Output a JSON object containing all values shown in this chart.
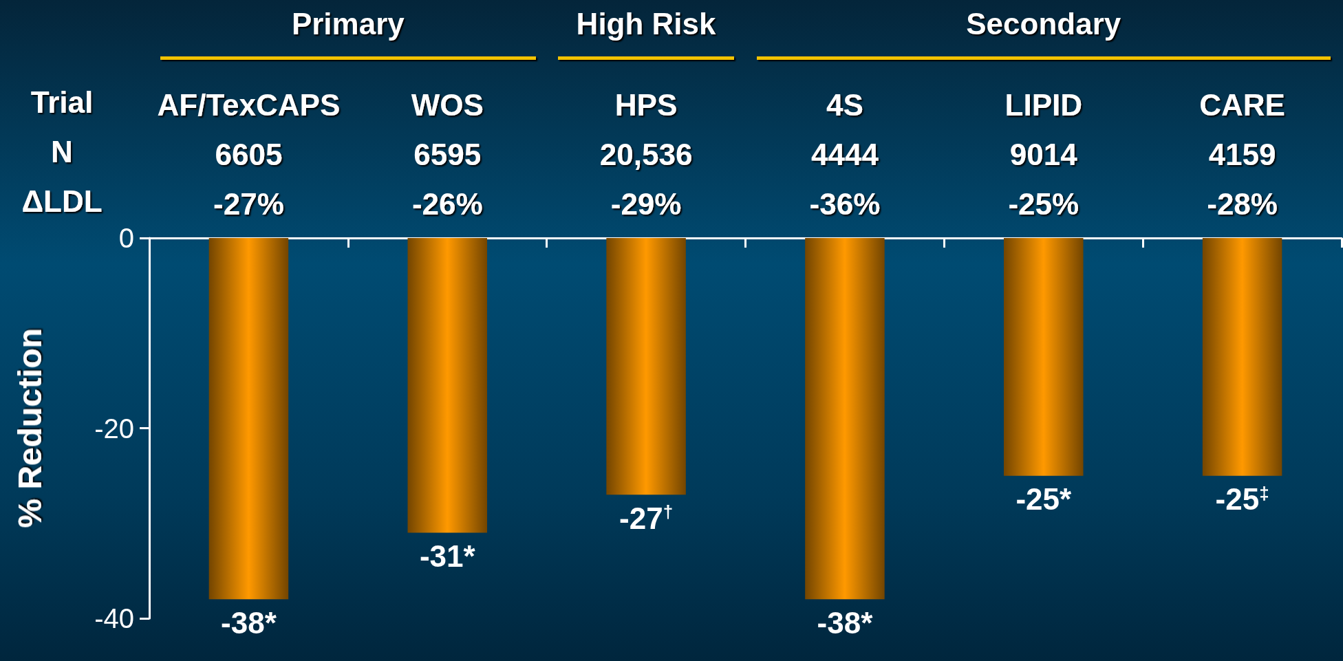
{
  "chart_data": {
    "type": "bar",
    "categories": [
      "AF/TexCAPS\n6605\n-27%",
      "WOS\n6595\n-26%",
      "HPS\n20,536\n-29%",
      "4S\n4444\n-36%",
      "LIPID\n9014\n-25%",
      "CARE\n4159\n-28%"
    ],
    "values": [
      -38,
      -31,
      -27,
      -38,
      -25,
      -25
    ],
    "value_labels": [
      "-38*",
      "-31*",
      "-27$^{†}$",
      "-38*",
      "-25*",
      "-25$^{‡}$"
    ],
    "color": "#ff9900",
    "ylabel": "% Reduction",
    "ylim": [
      -40,
      0
    ],
    "yticks": [
      -40,
      -20,
      0
    ],
    "grid": false,
    "annotations": [
      "Primary",
      "High Risk",
      "Secondary",
      "Trial\nN\nΔLDL"
    ]
  }
}
